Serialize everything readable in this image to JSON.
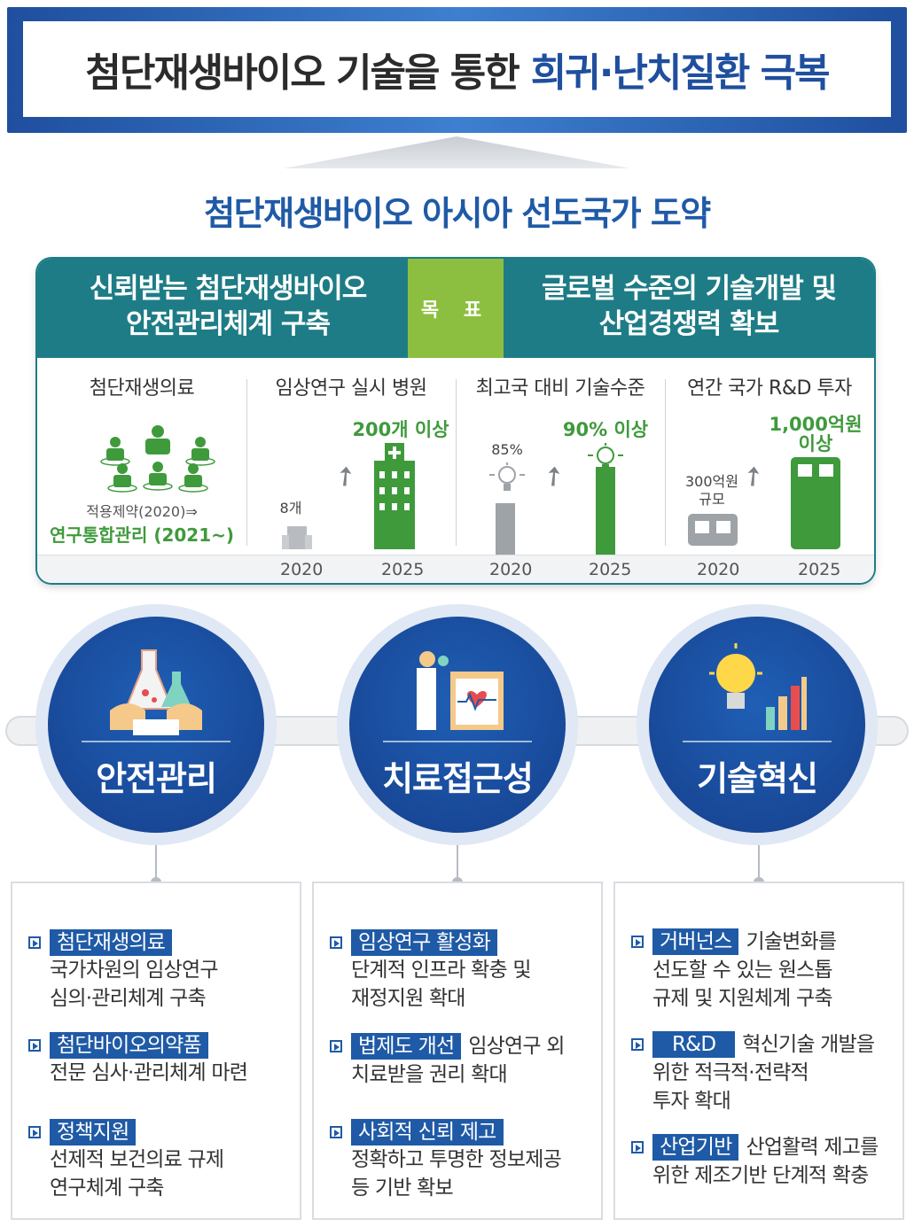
{
  "title": {
    "part1": "첨단재생바이오 기술을 통한",
    "part2": "희귀·난치질환 극복"
  },
  "subtitle": "첨단재생바이오 아시아 선도국가 도약",
  "goals": {
    "left": [
      "신뢰받는 첨단재생바이오",
      "안전관리체계 구축"
    ],
    "badge": "목 표",
    "right": [
      "글로벌 수준의 기술개발 및",
      "산업경쟁력 확보"
    ]
  },
  "metrics": {
    "regen": {
      "title": "첨단재생의료",
      "before": "적용제약(2020)⇒",
      "after": "연구통합관리 (2021~)"
    },
    "hospitals": {
      "title": "임상연구 실시 병원",
      "v2020": "8개",
      "v2025": "200개 이상",
      "y1": "2020",
      "y2": "2025"
    },
    "tech": {
      "title": "최고국 대비 기술수준",
      "v2020": "85%",
      "v2025": "90% 이상",
      "y1": "2020",
      "y2": "2025"
    },
    "rnd": {
      "title": "연간 국가 R&D 투자",
      "v2020a": "300억원",
      "v2020b": "규모",
      "v2025a": "1,000억원",
      "v2025b": "이상",
      "y1": "2020",
      "y2": "2025"
    }
  },
  "chart_data": [
    {
      "type": "bar",
      "title": "임상연구 실시 병원",
      "categories": [
        "2020",
        "2025"
      ],
      "values": [
        8,
        200
      ],
      "unit": "개"
    },
    {
      "type": "bar",
      "title": "최고국 대비 기술수준",
      "categories": [
        "2020",
        "2025"
      ],
      "values": [
        85,
        90
      ],
      "unit": "%"
    },
    {
      "type": "bar",
      "title": "연간 국가 R&D 투자",
      "categories": [
        "2020",
        "2025"
      ],
      "values": [
        300,
        1000
      ],
      "unit": "억원"
    }
  ],
  "strategies": [
    {
      "label": "안전관리"
    },
    {
      "label": "치료접근성"
    },
    {
      "label": "기술혁신"
    }
  ],
  "details": {
    "col1": [
      {
        "tag": "첨단재생의료",
        "first": "",
        "lines": [
          "국가차원의 임상연구",
          "심의·관리체계 구축"
        ]
      },
      {
        "tag": "첨단바이오의약품",
        "first": "",
        "lines": [
          "전문 심사·관리체계 마련"
        ]
      },
      {
        "tag": "정책지원",
        "first": "",
        "lines": [
          "선제적 보건의료 규제",
          "연구체계 구축"
        ]
      }
    ],
    "col2": [
      {
        "tag": "임상연구 활성화",
        "first": "",
        "lines": [
          "단계적 인프라 확충 및",
          "재정지원 확대"
        ]
      },
      {
        "tag": "법제도 개선",
        "first": "임상연구 외",
        "lines": [
          "치료받을 권리 확대"
        ]
      },
      {
        "tag": "사회적 신뢰 제고",
        "first": "",
        "lines": [
          "정확하고 투명한 정보제공",
          "등 기반 확보"
        ]
      }
    ],
    "col3": [
      {
        "tag": "거버넌스",
        "first": "기술변화를",
        "lines": [
          "선도할 수 있는 원스톱",
          "규제 및 지원체계 구축"
        ]
      },
      {
        "tag": "R&D",
        "first": "혁신기술 개발을",
        "lines": [
          "위한 적극적·전략적",
          "투자 확대"
        ]
      },
      {
        "tag": "산업기반",
        "first": "산업활력 제고를",
        "lines": [
          "위한 제조기반 단계적 확충"
        ]
      }
    ]
  },
  "colors": {
    "navy": "#1f4f9e",
    "teal": "#1e7c86",
    "green": "#3f9a3c",
    "lime": "#8cbf3f",
    "circle": "#1a4c9e"
  }
}
